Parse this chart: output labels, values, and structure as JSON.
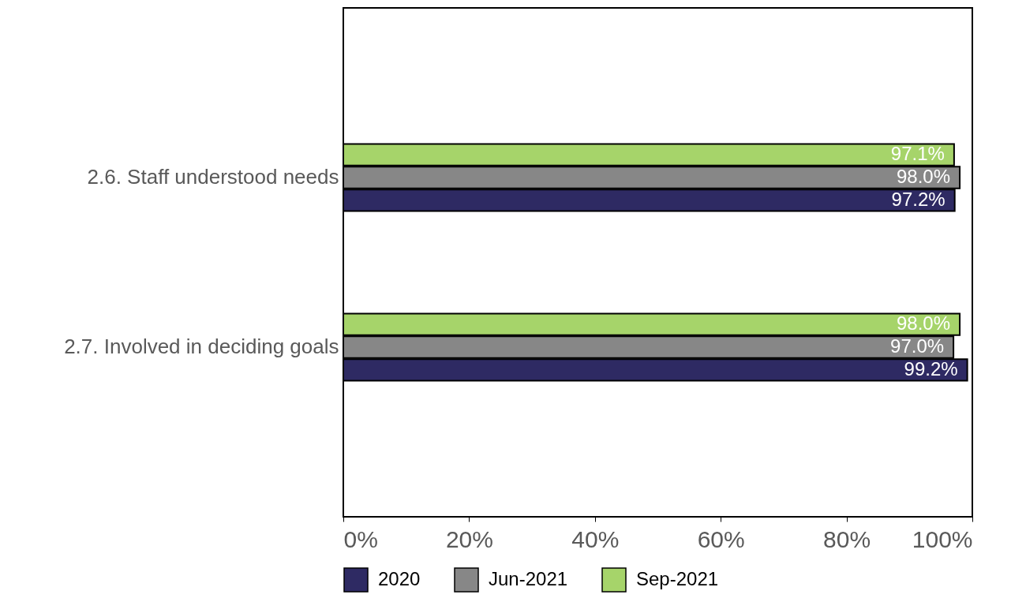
{
  "chart_data": {
    "type": "bar",
    "orientation": "horizontal",
    "categories": [
      "2.6. Staff understood needs",
      "2.7. Involved in deciding goals"
    ],
    "series": [
      {
        "name": "2020",
        "color": "#2e2a63",
        "values": [
          97.2,
          99.2
        ],
        "value_labels": [
          "97.2%",
          "99.2%"
        ]
      },
      {
        "name": "Jun-2021",
        "color": "#878787",
        "values": [
          98.0,
          97.0
        ],
        "value_labels": [
          "98.0%",
          "97.0%"
        ]
      },
      {
        "name": "Sep-2021",
        "color": "#a6d46a",
        "values": [
          97.1,
          98.0
        ],
        "value_labels": [
          "97.1%",
          "98.0%"
        ]
      }
    ],
    "xlim": [
      0,
      100
    ],
    "xticks": [
      {
        "value": 0,
        "label": "0%"
      },
      {
        "value": 20,
        "label": "20%"
      },
      {
        "value": 40,
        "label": "40%"
      },
      {
        "value": 60,
        "label": "60%"
      },
      {
        "value": 80,
        "label": "80%"
      },
      {
        "value": 100,
        "label": "100%"
      }
    ],
    "grid": false,
    "legend": "bottom"
  }
}
